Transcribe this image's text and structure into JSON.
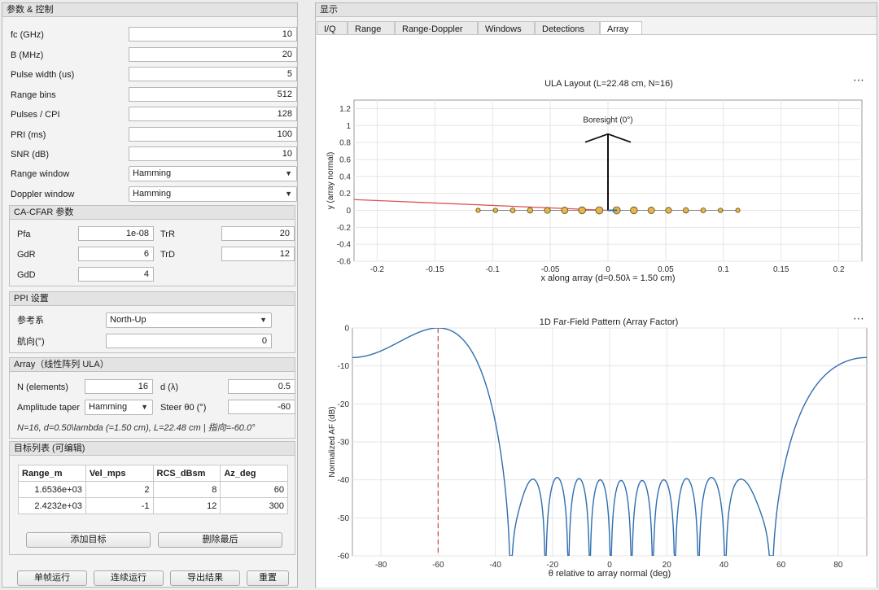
{
  "left_panel": {
    "title": "参数 & 控制",
    "params": [
      {
        "label": "fc (GHz)",
        "value": "10"
      },
      {
        "label": "B (MHz)",
        "value": "20"
      },
      {
        "label": "Pulse width (us)",
        "value": "5"
      },
      {
        "label": "Range bins",
        "value": "512"
      },
      {
        "label": "Pulses / CPI",
        "value": "128"
      },
      {
        "label": "PRI (ms)",
        "value": "100"
      },
      {
        "label": "SNR (dB)",
        "value": "10"
      }
    ],
    "range_window": {
      "label": "Range window",
      "value": "Hamming"
    },
    "doppler_window": {
      "label": "Doppler window",
      "value": "Hamming"
    }
  },
  "cfar": {
    "title": "CA-CFAR 参数",
    "pfa": {
      "label": "Pfa",
      "value": "1e-08"
    },
    "trr": {
      "label": "TrR",
      "value": "20"
    },
    "gdr": {
      "label": "GdR",
      "value": "6"
    },
    "trd": {
      "label": "TrD",
      "value": "12"
    },
    "gdd": {
      "label": "GdD",
      "value": "4"
    }
  },
  "ppi": {
    "title": "PPI 设置",
    "ref_label": "参考系",
    "ref_value": "North-Up",
    "heading_label": "航向(°)",
    "heading_value": "0"
  },
  "array": {
    "title": "Array（线性阵列 ULA）",
    "n_label": "N (elements)",
    "n_value": "16",
    "d_label": "d (λ)",
    "d_value": "0.5",
    "taper_label": "Amplitude taper",
    "taper_value": "Hamming",
    "steer_label": "Steer θ0 (°)",
    "steer_value": "-60",
    "summary": "N=16, d=0.50\\lambda (=1.50 cm), L=22.48 cm | 指向=-60.0°"
  },
  "targets": {
    "title": "目标列表 (可编辑)",
    "columns": [
      "Range_m",
      "Vel_mps",
      "RCS_dBsm",
      "Az_deg"
    ],
    "rows": [
      [
        "1.6536e+03",
        "2",
        "8",
        "60"
      ],
      [
        "2.4232e+03",
        "-1",
        "12",
        "300"
      ]
    ],
    "add_button": "添加目标",
    "delete_button": "删除最后"
  },
  "bottom_buttons": {
    "single": "单帧运行",
    "continuous": "连续运行",
    "export": "导出结果",
    "reset": "重置"
  },
  "display": {
    "title": "显示",
    "tabs": [
      "I/Q",
      "Range",
      "Range-Doppler",
      "Windows",
      "Detections",
      "Array"
    ],
    "active_tab": "Array",
    "more_glyph": "⋯"
  },
  "colors": {
    "accent_blue": "#2f6eb0",
    "steer_red": "#d9534f",
    "element_fill": "#e8b54a"
  },
  "chart_data": [
    {
      "type": "scatter",
      "title": "ULA Layout  (L=22.48 cm, N=16)",
      "xlabel": "x  along  array   (d=0.50λ  =  1.50  cm)",
      "ylabel": "y (array normal)",
      "xlim": [
        -0.22,
        0.22
      ],
      "ylim": [
        -0.6,
        1.3
      ],
      "xticks": [
        -0.2,
        -0.15,
        -0.1,
        -0.05,
        0,
        0.05,
        0.1,
        0.15,
        0.2
      ],
      "xtick_labels": [
        "-0.2",
        "-0.15",
        "-0.1",
        "-0.05",
        "0",
        "0.05",
        "0.1",
        "0.15",
        "0.2"
      ],
      "yticks": [
        -0.6,
        -0.4,
        -0.2,
        0,
        0.2,
        0.4,
        0.6,
        0.8,
        1,
        1.2
      ],
      "ytick_labels": [
        "-0.6",
        "-0.4",
        "-0.2",
        "0",
        "0.2",
        "0.4",
        "0.6",
        "0.8",
        "1",
        "1.2"
      ],
      "grid": true,
      "elements_x": [
        -0.1125,
        -0.0975,
        -0.0825,
        -0.0675,
        -0.0525,
        -0.0375,
        -0.0225,
        -0.0075,
        0.0075,
        0.0225,
        0.0375,
        0.0525,
        0.0675,
        0.0825,
        0.0975,
        0.1125
      ],
      "element_weights": [
        0.08,
        0.12,
        0.25,
        0.41,
        0.59,
        0.76,
        0.9,
        0.99,
        0.99,
        0.9,
        0.76,
        0.59,
        0.41,
        0.25,
        0.12,
        0.08
      ],
      "boresight_label": "Boresight (0°)",
      "boresight_length": 0.9,
      "steer_deg": -60
    },
    {
      "type": "line",
      "title": "1D Far-Field Pattern (Array Factor)",
      "xlabel": "θ  relative  to  array  normal  (deg)",
      "ylabel": "Normalized AF (dB)",
      "xlim": [
        -90,
        90
      ],
      "ylim": [
        -60,
        0
      ],
      "xticks": [
        -80,
        -60,
        -40,
        -20,
        0,
        20,
        40,
        60,
        80
      ],
      "xtick_labels": [
        "-80",
        "-60",
        "-40",
        "-20",
        "0",
        "20",
        "40",
        "60",
        "80"
      ],
      "yticks": [
        0,
        -10,
        -20,
        -30,
        -40,
        -50,
        -60
      ],
      "ytick_labels": [
        "0",
        "-10",
        "-20",
        "-30",
        "-40",
        "-50",
        "-60"
      ],
      "grid": true,
      "array_n": 16,
      "spacing_lambda": 0.5,
      "taper": "Hamming",
      "steer_deg": -60
    }
  ]
}
